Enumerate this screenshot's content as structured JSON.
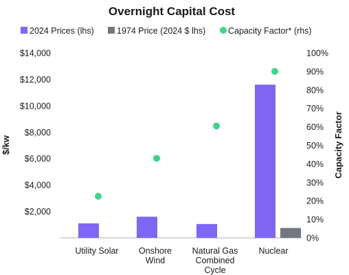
{
  "chart_data": {
    "type": "bar",
    "title": "Overnight Capital Cost",
    "categories": [
      [
        "Utility Solar"
      ],
      [
        "Onshore",
        "Wind"
      ],
      [
        "Natural Gas",
        "Combined",
        "Cycle"
      ],
      [
        "Nuclear"
      ]
    ],
    "series": [
      {
        "name": "2024 Prices (lhs)",
        "kind": "bar",
        "axis": "left",
        "color": "#8066f5",
        "values": [
          1100,
          1600,
          1050,
          11600
        ]
      },
      {
        "name": "1974 Price (2024 $ lhs)",
        "kind": "bar",
        "axis": "left",
        "color": "#737880",
        "values": [
          null,
          null,
          null,
          750
        ]
      },
      {
        "name": "Capacity Factor* (rhs)",
        "kind": "scatter",
        "axis": "right",
        "color": "#3ed68c",
        "values": [
          0.225,
          0.43,
          0.605,
          0.9
        ]
      }
    ],
    "ylabel": "$/kw",
    "y2label": "Capacity Factor",
    "ylim": [
      0,
      14000
    ],
    "y2lim": [
      0,
      1
    ],
    "yticks": [
      "",
      "$2,000",
      "$4,000",
      "$6,000",
      "$8,000",
      "$10,000",
      "$12,000",
      "$14,000"
    ],
    "y2ticks": [
      "0%",
      "10%",
      "20%",
      "30%",
      "40%",
      "50%",
      "60%",
      "70%",
      "80%",
      "90%",
      "100%"
    ],
    "grid": false,
    "legend_position": "top"
  }
}
